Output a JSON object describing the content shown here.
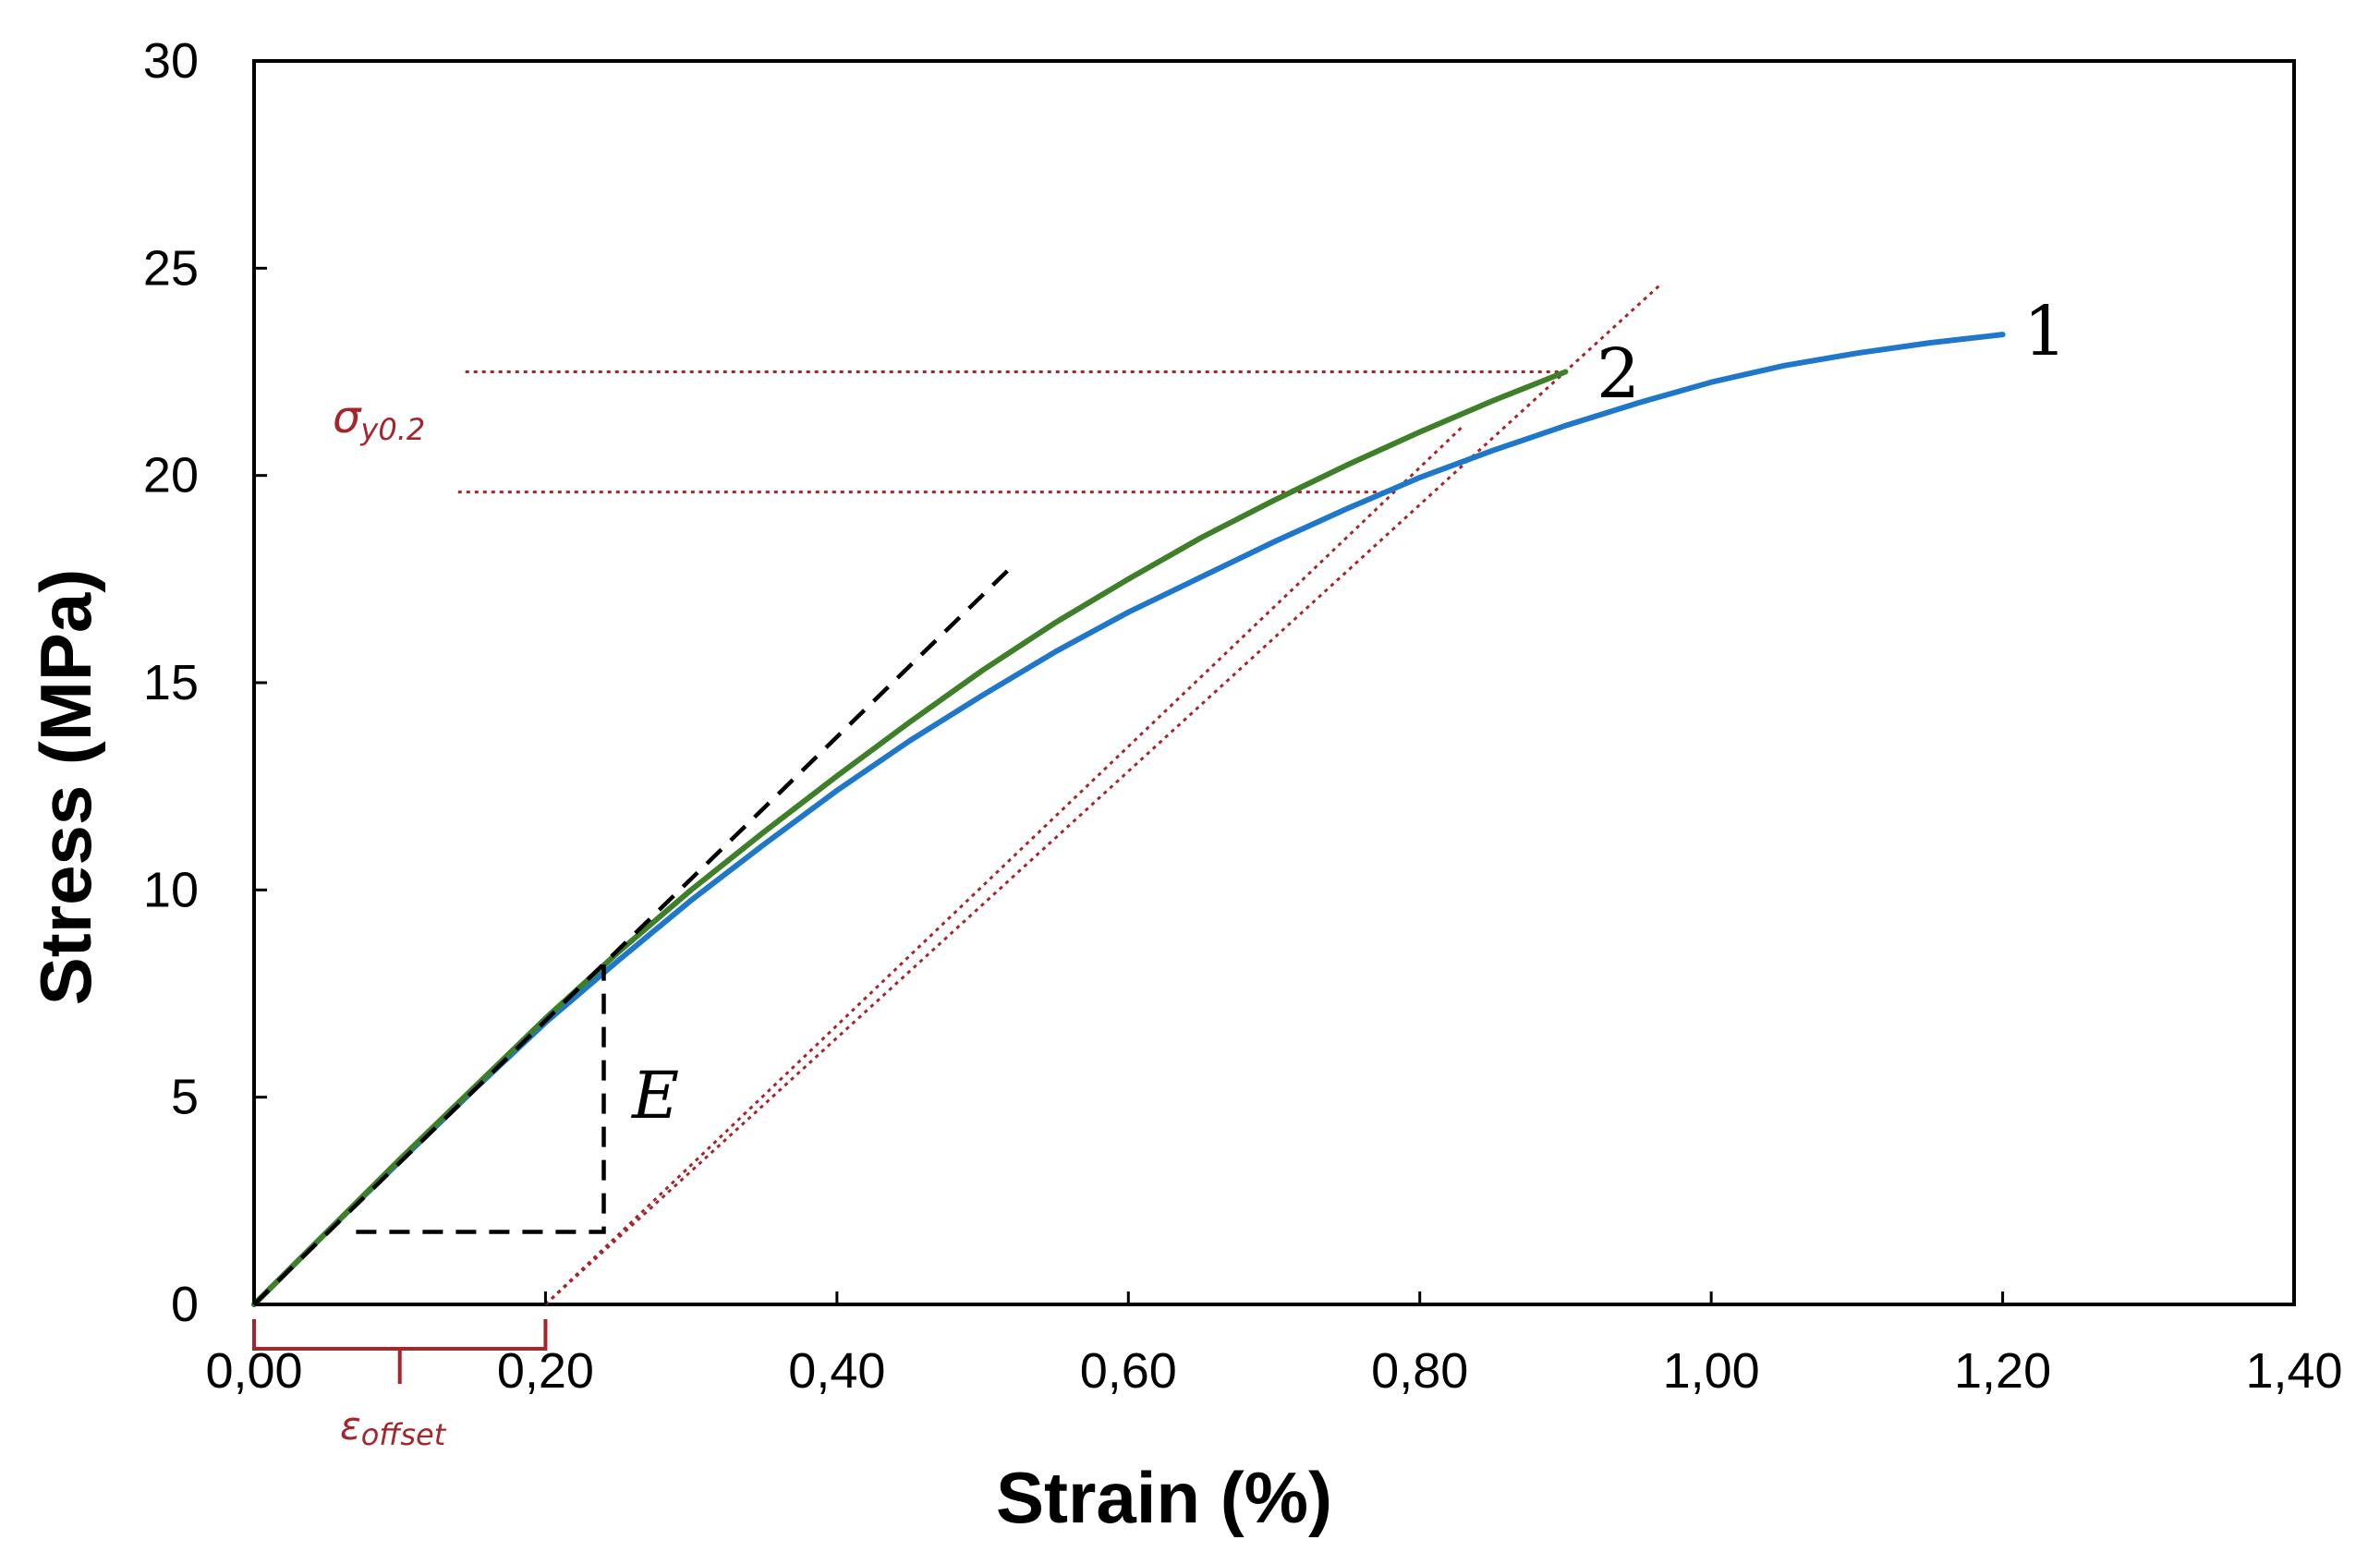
{
  "chart_data": {
    "type": "line",
    "title": "",
    "xlabel": "Strain (%)",
    "ylabel": "Stress (MPa)",
    "xlim": [
      0,
      1.4
    ],
    "ylim": [
      0,
      30
    ],
    "xticks": [
      0,
      0.2,
      0.4,
      0.6,
      0.8,
      1.0,
      1.2,
      1.4
    ],
    "xtick_labels": [
      "0,00",
      "0,20",
      "0,40",
      "0,60",
      "0,80",
      "1,00",
      "1,20",
      "1,40"
    ],
    "yticks": [
      0,
      5,
      10,
      15,
      20,
      25,
      30
    ],
    "ytick_labels": [
      "0",
      "5",
      "10",
      "15",
      "20",
      "25",
      "30"
    ],
    "grid": false,
    "series": [
      {
        "name": "1",
        "color": "#1f77c9",
        "x": [
          0,
          0.05,
          0.1,
          0.15,
          0.2,
          0.25,
          0.3,
          0.35,
          0.4,
          0.45,
          0.5,
          0.55,
          0.6,
          0.65,
          0.7,
          0.75,
          0.8,
          0.85,
          0.9,
          0.95,
          1.0,
          1.05,
          1.1,
          1.15,
          1.2
        ],
        "values": [
          0,
          1.75,
          3.45,
          5.15,
          6.8,
          8.3,
          9.75,
          11.1,
          12.4,
          13.6,
          14.7,
          15.75,
          16.7,
          17.55,
          18.4,
          19.2,
          19.95,
          20.6,
          21.2,
          21.75,
          22.25,
          22.65,
          22.95,
          23.2,
          23.4
        ]
      },
      {
        "name": "2",
        "color": "#3f7f2a",
        "x": [
          0,
          0.05,
          0.1,
          0.15,
          0.2,
          0.25,
          0.3,
          0.35,
          0.4,
          0.45,
          0.5,
          0.55,
          0.6,
          0.65,
          0.7,
          0.75,
          0.8,
          0.85,
          0.9
        ],
        "values": [
          0,
          1.75,
          3.5,
          5.2,
          6.9,
          8.5,
          10.0,
          11.4,
          12.75,
          14.05,
          15.3,
          16.45,
          17.5,
          18.5,
          19.4,
          20.25,
          21.05,
          21.8,
          22.5
        ]
      }
    ],
    "annotations": {
      "elastic_line": {
        "x": [
          0,
          0.52
        ],
        "y": [
          0,
          17.8
        ],
        "style": "dashed",
        "color": "#000000"
      },
      "modulus_triangle": {
        "x": [
          0.07,
          0.24,
          0.24
        ],
        "y": [
          1.75,
          1.75,
          8.2
        ],
        "style": "dashed",
        "color": "#000000"
      },
      "offset_line_a": {
        "x": [
          0.2,
          0.965
        ],
        "y": [
          0,
          24.6
        ],
        "style": "dotted",
        "color": "#a4262c"
      },
      "offset_line_b": {
        "x": [
          0.2,
          0.83
        ],
        "y": [
          0,
          21.2
        ],
        "style": "dotted",
        "color": "#a4262c"
      },
      "yield_line_2": {
        "x": [
          0.145,
          0.9
        ],
        "y": [
          22.5,
          22.5
        ],
        "style": "dotted",
        "color": "#a4262c"
      },
      "yield_line_1": {
        "x": [
          0.14,
          0.78
        ],
        "y": [
          19.6,
          19.6
        ],
        "style": "dotted",
        "color": "#a4262c"
      },
      "offset_bracket": {
        "x": [
          0,
          0.2
        ],
        "label_main": "ε",
        "label_sub": "offset",
        "color": "#a4262c"
      },
      "yield_label": {
        "main": "σ",
        "sub": "y0.2",
        "color": "#a4262c"
      },
      "modulus_label": "E",
      "curve_labels": [
        "1",
        "2"
      ]
    }
  }
}
